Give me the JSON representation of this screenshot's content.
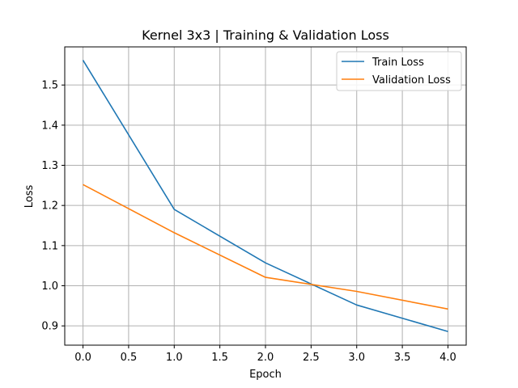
{
  "chart_data": {
    "type": "line",
    "title": "Kernel 3x3 | Training & Validation Loss",
    "xlabel": "Epoch",
    "ylabel": "Loss",
    "xlim": [
      -0.2,
      4.2
    ],
    "ylim": [
      0.852,
      1.595
    ],
    "x_ticks": [
      0.0,
      0.5,
      1.0,
      1.5,
      2.0,
      2.5,
      3.0,
      3.5,
      4.0
    ],
    "x_tick_labels": [
      "0.0",
      "0.5",
      "1.0",
      "1.5",
      "2.0",
      "2.5",
      "3.0",
      "3.5",
      "4.0"
    ],
    "y_ticks": [
      0.9,
      1.0,
      1.1,
      1.2,
      1.3,
      1.4,
      1.5
    ],
    "y_tick_labels": [
      "0.9",
      "1.0",
      "1.1",
      "1.2",
      "1.3",
      "1.4",
      "1.5"
    ],
    "grid": true,
    "legend_position": "top-right",
    "x": [
      0,
      1,
      2,
      3,
      4
    ],
    "series": [
      {
        "name": "Train Loss",
        "color": "#1f77b4",
        "values": [
          1.562,
          1.19,
          1.057,
          0.952,
          0.886
        ]
      },
      {
        "name": "Validation Loss",
        "color": "#ff7f0e",
        "values": [
          1.252,
          1.132,
          1.021,
          0.986,
          0.942
        ]
      }
    ]
  }
}
